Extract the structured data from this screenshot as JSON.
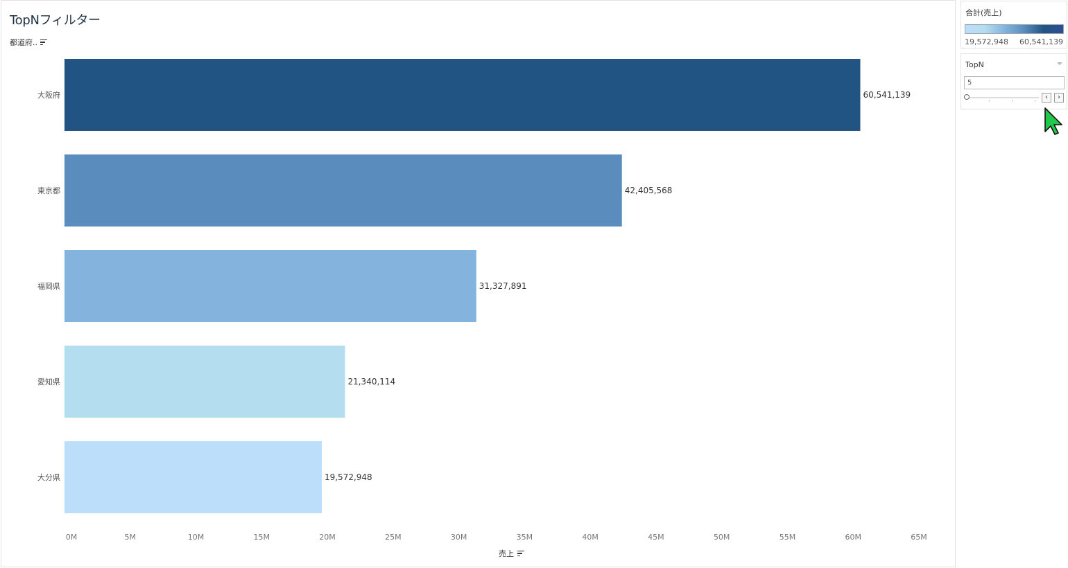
{
  "sheet": {
    "title": "TopNフィルター",
    "row_header": "都道府..",
    "x_axis_title": "売上"
  },
  "legend": {
    "title": "合計(売上)",
    "min_label": "19,572,948",
    "max_label": "60,541,139"
  },
  "parameter": {
    "title": "TopN",
    "value": "5",
    "prev_label": "‹",
    "next_label": "›"
  },
  "colors": {
    "bar_1": "#215482",
    "bar_2": "#5a8dbd",
    "bar_3": "#84b4dd",
    "bar_4": "#b4ddef",
    "bar_5": "#bcdefb",
    "title": "#1f3345",
    "cursor": "#22c84a"
  },
  "chart_data": {
    "type": "bar",
    "orientation": "horizontal",
    "categories": [
      "大阪府",
      "東京都",
      "福岡県",
      "愛知県",
      "大分県"
    ],
    "values": [
      60541139,
      42405568,
      31327891,
      21340114,
      19572948
    ],
    "value_labels": [
      "60,541,139",
      "42,405,568",
      "31,327,891",
      "21,340,114",
      "19,572,948"
    ],
    "xlabel": "売上",
    "ylabel": "都道府..",
    "xlim": [
      0,
      65000000
    ],
    "ticks": [
      0,
      5000000,
      10000000,
      15000000,
      20000000,
      25000000,
      30000000,
      35000000,
      40000000,
      45000000,
      50000000,
      55000000,
      60000000,
      65000000
    ],
    "tick_labels": [
      "0M",
      "5M",
      "10M",
      "15M",
      "20M",
      "25M",
      "30M",
      "35M",
      "40M",
      "45M",
      "50M",
      "55M",
      "60M",
      "65M"
    ],
    "grid": false
  }
}
